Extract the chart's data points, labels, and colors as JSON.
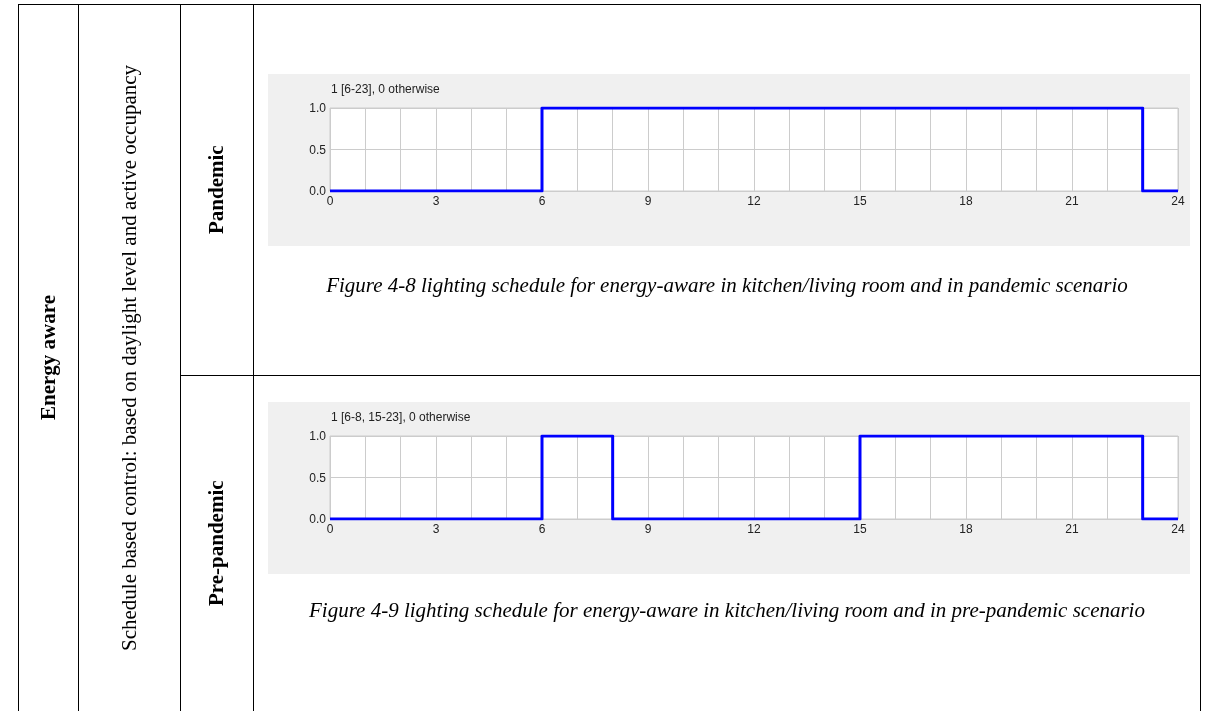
{
  "chart_data": [
    {
      "type": "step",
      "title": "1 [6-23], 0 otherwise",
      "x": [
        0,
        6,
        23,
        24
      ],
      "values": [
        0,
        1,
        0,
        0
      ],
      "color": "#0000ff",
      "marker": "none",
      "grid": true,
      "xlim": [
        0,
        24
      ],
      "xticks": [
        0,
        {
          "value": 1,
          "label": null
        },
        {
          "value": 2,
          "label": null
        },
        3,
        {
          "value": 4,
          "label": null
        },
        {
          "value": 5,
          "label": null
        },
        6,
        {
          "value": 7,
          "label": null
        },
        {
          "value": 8,
          "label": null
        },
        9,
        {
          "value": 10,
          "label": null
        },
        {
          "value": 11,
          "label": null
        },
        12,
        {
          "value": 13,
          "label": null
        },
        {
          "value": 14,
          "label": null
        },
        15,
        {
          "value": 16,
          "label": null
        },
        {
          "value": 17,
          "label": null
        },
        18,
        {
          "value": 19,
          "label": null
        },
        {
          "value": 20,
          "label": null
        },
        21,
        {
          "value": 22,
          "label": null
        },
        {
          "value": 23,
          "label": null
        },
        24
      ],
      "ylim": [
        0,
        1
      ],
      "yticks": [
        {
          "value": 0,
          "label": "0.0"
        },
        {
          "value": 0.5,
          "label": "0.5"
        },
        {
          "value": 1,
          "label": "1.0"
        }
      ],
      "annotations": [
        "Energy aware",
        "Schedule based control: based on daylight level and active occupancy",
        "Pandemic",
        "Figure 4-8  lighting schedule for energy-aware in kitchen/living room and in pandemic scenario"
      ]
    },
    {
      "type": "step",
      "title": "1 [6-8, 15-23], 0 otherwise",
      "x": [
        0,
        6,
        8,
        15,
        23,
        24
      ],
      "values": [
        0,
        1,
        0,
        1,
        0,
        0
      ],
      "color": "#0000ff",
      "marker": "none",
      "grid": true,
      "xlim": [
        0,
        24
      ],
      "xticks": [
        0,
        {
          "value": 1,
          "label": null
        },
        {
          "value": 2,
          "label": null
        },
        3,
        {
          "value": 4,
          "label": null
        },
        {
          "value": 5,
          "label": null
        },
        6,
        {
          "value": 7,
          "label": null
        },
        {
          "value": 8,
          "label": null
        },
        9,
        {
          "value": 10,
          "label": null
        },
        {
          "value": 11,
          "label": null
        },
        12,
        {
          "value": 13,
          "label": null
        },
        {
          "value": 14,
          "label": null
        },
        15,
        {
          "value": 16,
          "label": null
        },
        {
          "value": 17,
          "label": null
        },
        18,
        {
          "value": 19,
          "label": null
        },
        {
          "value": 20,
          "label": null
        },
        21,
        {
          "value": 22,
          "label": null
        },
        {
          "value": 23,
          "label": null
        },
        24
      ],
      "ylim": [
        0,
        1
      ],
      "yticks": [
        {
          "value": 0,
          "label": "0.0"
        },
        {
          "value": 0.5,
          "label": "0.5"
        },
        {
          "value": 1,
          "label": "1.0"
        }
      ],
      "annotations": [
        "Pre-pandemic",
        "Figure 4-9 lighting schedule for energy-aware in kitchen/living room and in pre-pandemic scenario"
      ]
    }
  ]
}
